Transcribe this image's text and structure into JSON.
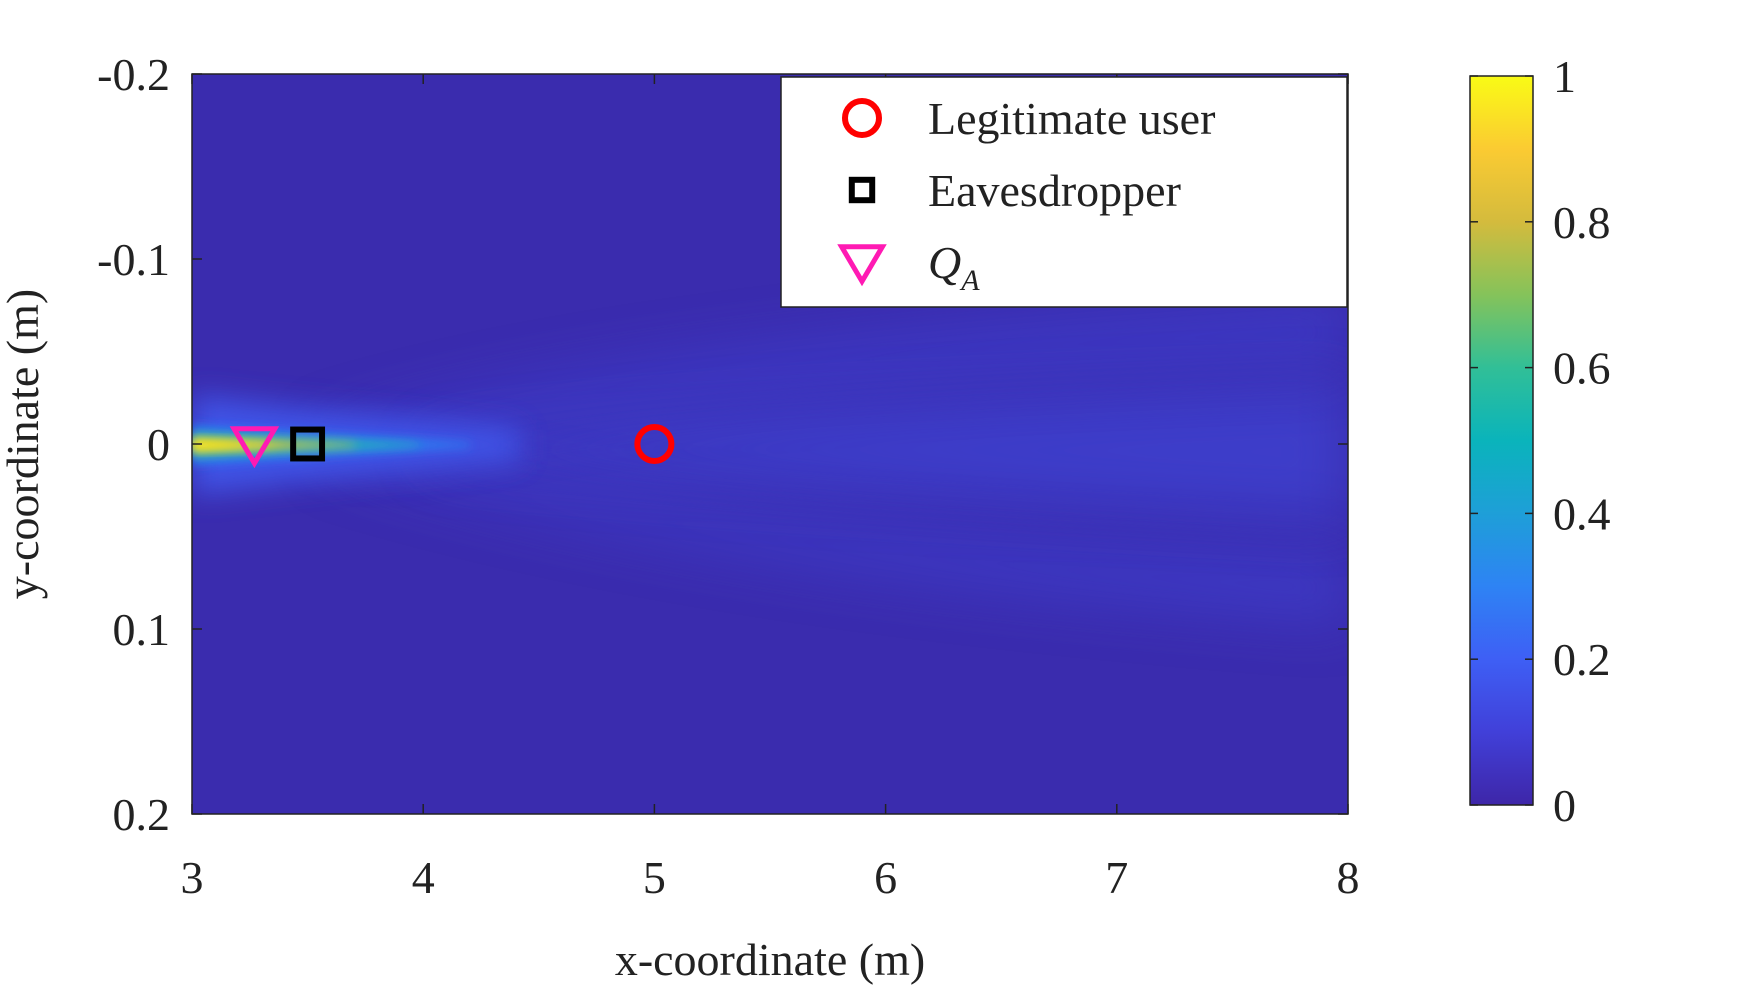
{
  "chart_data": {
    "type": "heatmap",
    "title": "",
    "xlabel": "x-coordinate (m)",
    "ylabel": "y-coordinate (m)",
    "xlim": [
      3,
      8
    ],
    "ylim": [
      -0.2,
      0.2
    ],
    "y_axis_direction": "top-to-bottom increasing",
    "x_ticks": [
      "3",
      "4",
      "5",
      "6",
      "7",
      "8"
    ],
    "x_tick_values": [
      3,
      4,
      5,
      6,
      7,
      8
    ],
    "y_ticks": [
      "-0.2",
      "-0.1",
      "0",
      "0.1",
      "0.2"
    ],
    "y_tick_values": [
      -0.2,
      -0.1,
      0,
      0.1,
      0.2
    ],
    "colorbar": {
      "range": [
        0,
        1
      ],
      "ticks": [
        "0",
        "0.2",
        "0.4",
        "0.6",
        "0.8",
        "1"
      ],
      "tick_values": [
        0,
        0.2,
        0.4,
        0.6,
        0.8,
        1
      ],
      "colormap": "parula"
    },
    "grid": false,
    "legend_position": "top-right",
    "series": [
      {
        "name": "Legitimate user",
        "marker": "circle",
        "color": "#ff0000",
        "x": [
          5
        ],
        "y": [
          0
        ]
      },
      {
        "name": "Eavesdropper",
        "marker": "square",
        "color": "#000000",
        "x": [
          3.5
        ],
        "y": [
          0
        ]
      },
      {
        "name": "Q",
        "name_subscript": "A",
        "marker": "triangle-down",
        "color": "#ff1ab3",
        "x": [
          3.27
        ],
        "y": [
          0
        ]
      }
    ],
    "field_description_values": {
      "background_level": 0.02,
      "peak_level": 1.0,
      "peak_x_range": [
        3.0,
        3.9
      ],
      "beam_axis_y": 0
    }
  }
}
